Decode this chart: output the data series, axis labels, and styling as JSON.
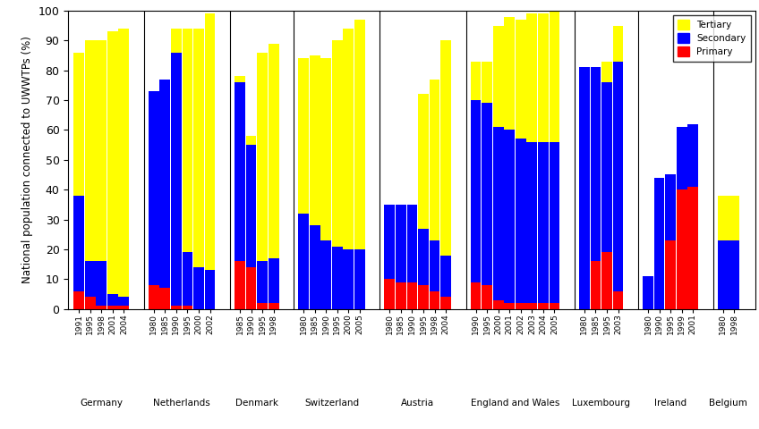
{
  "ylabel": "National population connected to UWWTPs (%)",
  "ylim": [
    0,
    100
  ],
  "colors": {
    "primary": "#FF0000",
    "secondary": "#0000FF",
    "tertiary": "#FFFF00"
  },
  "countries": [
    {
      "name": "Germany",
      "years": [
        "1991",
        "1995",
        "1998",
        "2001",
        "2004"
      ],
      "primary": [
        6,
        4,
        1,
        1,
        1
      ],
      "secondary": [
        32,
        12,
        15,
        4,
        3
      ],
      "tertiary": [
        48,
        74,
        74,
        88,
        90
      ]
    },
    {
      "name": "Netherlands",
      "years": [
        "1980",
        "1985",
        "1990",
        "1995",
        "2000",
        "2002"
      ],
      "primary": [
        8,
        7,
        1,
        1,
        0,
        0
      ],
      "secondary": [
        65,
        70,
        85,
        18,
        14,
        13
      ],
      "tertiary": [
        0,
        0,
        8,
        75,
        80,
        86
      ]
    },
    {
      "name": "Denmark",
      "years": [
        "1985",
        "1990",
        "1995",
        "1998"
      ],
      "primary": [
        16,
        14,
        2,
        2
      ],
      "secondary": [
        60,
        41,
        14,
        15
      ],
      "tertiary": [
        2,
        3,
        70,
        72
      ]
    },
    {
      "name": "Switzerland",
      "years": [
        "1980",
        "1985",
        "1990",
        "1995",
        "2000",
        "2005"
      ],
      "primary": [
        0,
        0,
        0,
        0,
        0,
        0
      ],
      "secondary": [
        32,
        28,
        23,
        21,
        20,
        20
      ],
      "tertiary": [
        52,
        57,
        61,
        69,
        74,
        77
      ]
    },
    {
      "name": "Austria",
      "years": [
        "1980",
        "1985",
        "1990",
        "1995",
        "1998",
        "2004"
      ],
      "primary": [
        10,
        9,
        9,
        8,
        6,
        4
      ],
      "secondary": [
        25,
        26,
        26,
        19,
        17,
        14
      ],
      "tertiary": [
        0,
        0,
        0,
        45,
        54,
        72
      ]
    },
    {
      "name": "England and Wales",
      "years": [
        "1990",
        "1995",
        "2000",
        "2001",
        "2002",
        "2003",
        "2004",
        "2005"
      ],
      "primary": [
        9,
        8,
        3,
        2,
        2,
        2,
        2,
        2
      ],
      "secondary": [
        61,
        61,
        58,
        58,
        55,
        54,
        54,
        54
      ],
      "tertiary": [
        13,
        14,
        34,
        38,
        40,
        43,
        43,
        44
      ]
    },
    {
      "name": "Luxembourg",
      "years": [
        "1980",
        "1985",
        "1995",
        "2003"
      ],
      "primary": [
        0,
        16,
        19,
        6
      ],
      "secondary": [
        81,
        65,
        57,
        77
      ],
      "tertiary": [
        0,
        0,
        7,
        12
      ]
    },
    {
      "name": "Ireland",
      "years": [
        "1980",
        "1990",
        "1995",
        "1999",
        "2001"
      ],
      "primary": [
        0,
        0,
        23,
        40,
        41
      ],
      "secondary": [
        11,
        44,
        22,
        21,
        21
      ],
      "tertiary": [
        0,
        0,
        0,
        0,
        0
      ]
    },
    {
      "name": "Belgium",
      "years": [
        "1980",
        "1998"
      ],
      "primary": [
        0,
        0
      ],
      "secondary": [
        23,
        23
      ],
      "tertiary": [
        15,
        15
      ]
    }
  ]
}
